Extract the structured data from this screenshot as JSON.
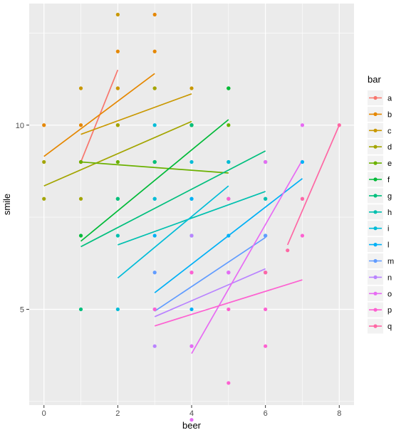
{
  "chart_data": {
    "type": "scatter",
    "title": "",
    "xlabel": "beer",
    "ylabel": "smile",
    "xlim": [
      -0.4,
      8.4
    ],
    "ylim": [
      2.4,
      13.3
    ],
    "x_ticks": [
      0,
      2,
      4,
      6,
      8
    ],
    "y_ticks": [
      5,
      10
    ],
    "grid": true,
    "legend": {
      "title": "bar",
      "position": "right"
    },
    "series": [
      {
        "name": "a",
        "color": "#F8766D",
        "points": [
          [
            1,
            9
          ],
          [
            2,
            11
          ]
        ],
        "fit": [
          [
            1,
            9.0
          ],
          [
            2,
            11.5
          ]
        ]
      },
      {
        "name": "b",
        "color": "#E58700",
        "points": [
          [
            0,
            10
          ],
          [
            1,
            9
          ],
          [
            1,
            10
          ],
          [
            2,
            12
          ],
          [
            3,
            13
          ],
          [
            3,
            12
          ]
        ],
        "fit": [
          [
            0,
            9.15
          ],
          [
            3,
            11.4
          ]
        ]
      },
      {
        "name": "c",
        "color": "#C99800",
        "points": [
          [
            1,
            11
          ],
          [
            2,
            13
          ],
          [
            2,
            11
          ],
          [
            3,
            11
          ],
          [
            4,
            11
          ],
          [
            2,
            10
          ]
        ],
        "fit": [
          [
            1,
            9.75
          ],
          [
            4,
            10.85
          ]
        ]
      },
      {
        "name": "d",
        "color": "#A3A500",
        "points": [
          [
            0,
            9
          ],
          [
            0,
            8
          ],
          [
            1,
            8
          ],
          [
            2,
            10
          ],
          [
            3,
            11
          ],
          [
            4,
            10
          ]
        ],
        "fit": [
          [
            0,
            8.35
          ],
          [
            4,
            10.1
          ]
        ]
      },
      {
        "name": "e",
        "color": "#6BB100",
        "points": [
          [
            1,
            9
          ],
          [
            2,
            9
          ],
          [
            3,
            9
          ],
          [
            4,
            10
          ],
          [
            5,
            10
          ],
          [
            5,
            11
          ]
        ],
        "fit": [
          [
            1,
            9.0
          ],
          [
            5,
            8.7
          ]
        ]
      },
      {
        "name": "f",
        "color": "#00BA38",
        "points": [
          [
            1,
            7
          ],
          [
            2,
            8
          ],
          [
            3,
            9
          ],
          [
            4,
            10
          ],
          [
            5,
            11
          ],
          [
            5,
            11
          ]
        ],
        "fit": [
          [
            1,
            6.85
          ],
          [
            5,
            10.15
          ]
        ]
      },
      {
        "name": "g",
        "color": "#00BF7D",
        "points": [
          [
            1,
            5
          ],
          [
            2,
            8
          ],
          [
            3,
            9
          ],
          [
            4,
            10
          ],
          [
            5,
            9
          ],
          [
            6,
            9
          ]
        ],
        "fit": [
          [
            1,
            6.7
          ],
          [
            6,
            9.3
          ]
        ]
      },
      {
        "name": "h",
        "color": "#00C0AF",
        "points": [
          [
            2,
            7
          ],
          [
            3,
            8
          ],
          [
            4,
            7
          ],
          [
            5,
            8
          ],
          [
            6,
            8
          ],
          [
            6,
            8
          ]
        ],
        "fit": [
          [
            2,
            6.75
          ],
          [
            6,
            8.2
          ]
        ]
      },
      {
        "name": "i",
        "color": "#00BCD8",
        "points": [
          [
            2,
            5
          ],
          [
            3,
            10
          ],
          [
            4,
            9
          ],
          [
            4,
            8
          ],
          [
            5,
            9
          ],
          [
            3,
            8
          ]
        ],
        "fit": [
          [
            2,
            5.85
          ],
          [
            5,
            8.35
          ]
        ]
      },
      {
        "name": "l",
        "color": "#00B0F6",
        "points": [
          [
            3,
            7
          ],
          [
            4,
            5
          ],
          [
            5,
            7
          ],
          [
            6,
            7
          ],
          [
            7,
            9
          ],
          [
            4,
            8
          ]
        ],
        "fit": [
          [
            3,
            5.45
          ],
          [
            7,
            8.55
          ]
        ]
      },
      {
        "name": "m",
        "color": "#619CFF",
        "points": [
          [
            3,
            6
          ],
          [
            3,
            5
          ],
          [
            4,
            4
          ],
          [
            5,
            6
          ],
          [
            6,
            6
          ],
          [
            6,
            7
          ]
        ],
        "fit": [
          [
            3,
            4.95
          ],
          [
            6,
            6.95
          ]
        ]
      },
      {
        "name": "n",
        "color": "#B983FF",
        "points": [
          [
            3,
            4
          ],
          [
            4,
            7
          ],
          [
            4,
            6
          ],
          [
            5,
            6
          ],
          [
            6,
            6
          ],
          [
            7,
            8
          ]
        ],
        "fit": [
          [
            3,
            4.8
          ],
          [
            6,
            6.1
          ]
        ]
      },
      {
        "name": "o",
        "color": "#E76BF3",
        "points": [
          [
            4,
            2
          ],
          [
            4,
            4
          ],
          [
            5,
            6
          ],
          [
            6,
            9
          ],
          [
            7,
            10
          ]
        ],
        "fit": [
          [
            4,
            3.8
          ],
          [
            7,
            9.05
          ]
        ]
      },
      {
        "name": "p",
        "color": "#FD61D1",
        "points": [
          [
            3,
            5
          ],
          [
            4,
            6
          ],
          [
            5,
            5
          ],
          [
            5,
            3
          ],
          [
            6,
            5
          ],
          [
            6,
            4
          ],
          [
            7,
            7
          ],
          [
            5,
            8
          ]
        ],
        "fit": [
          [
            3,
            4.55
          ],
          [
            7,
            5.8
          ]
        ]
      },
      {
        "name": "q",
        "color": "#FF67A4",
        "points": [
          [
            6.6,
            6.6
          ],
          [
            6,
            6
          ],
          [
            7,
            8
          ],
          [
            8,
            10
          ]
        ],
        "fit": [
          [
            6.6,
            6.75
          ],
          [
            8,
            10.0
          ]
        ]
      }
    ]
  }
}
